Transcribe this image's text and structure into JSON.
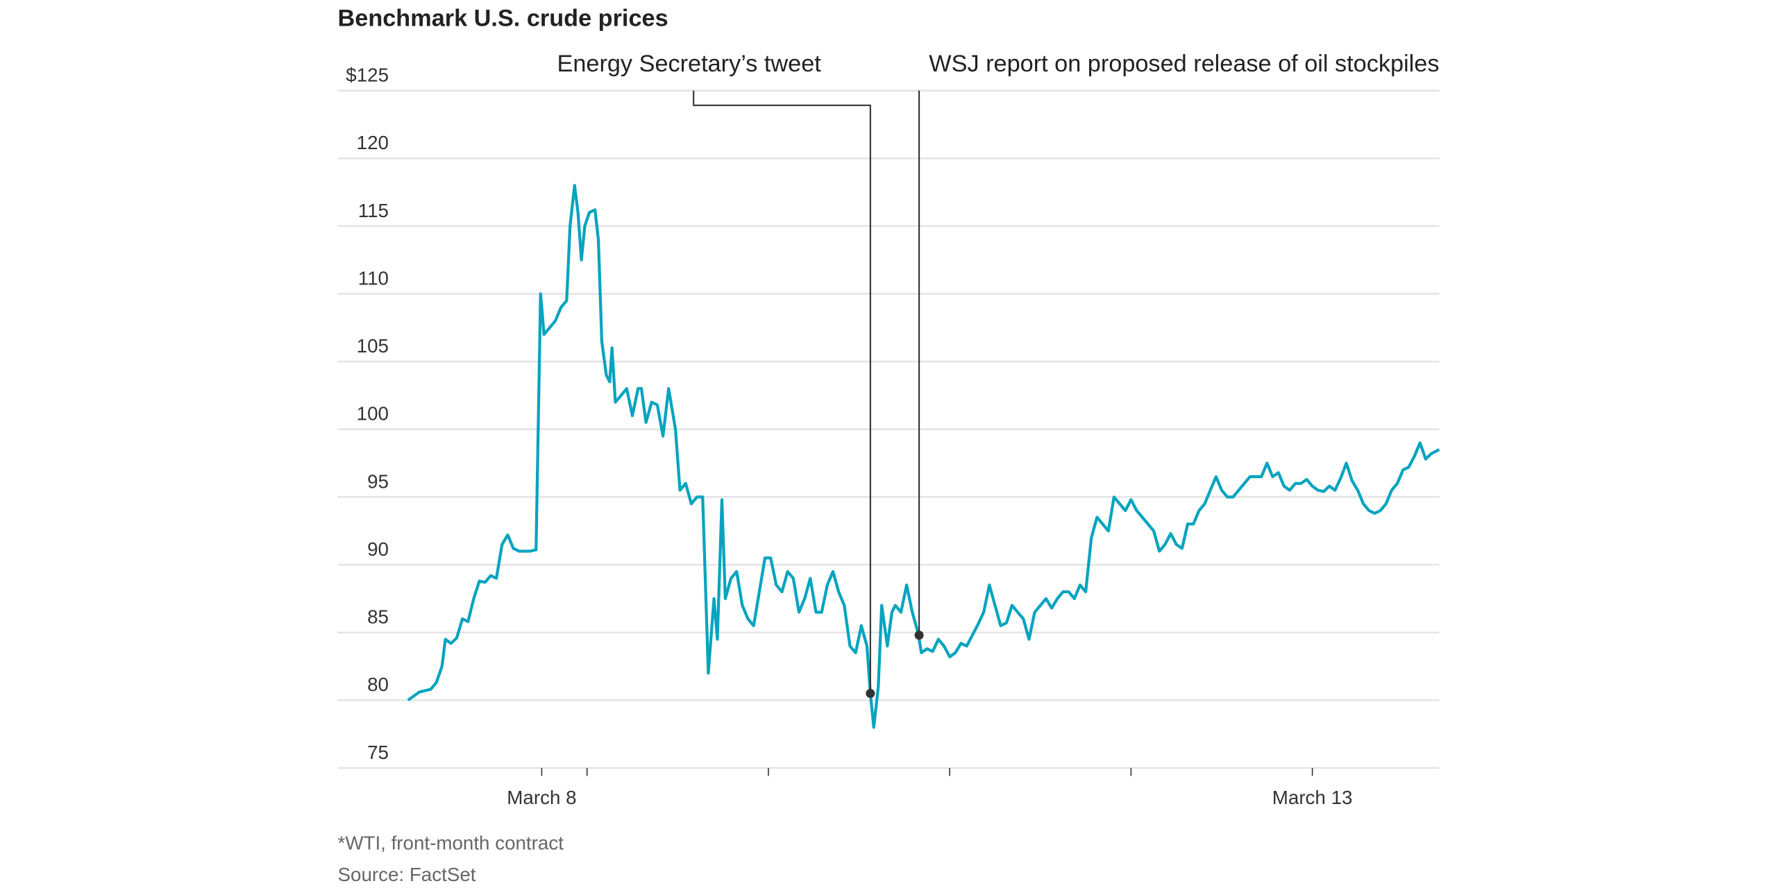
{
  "chart_data": {
    "type": "line",
    "title": "Benchmark U.S. crude prices",
    "footnote": "*WTI, front-month contract",
    "source": "Source: FactSet",
    "ylim": [
      75,
      125
    ],
    "yticks": [
      75,
      80,
      85,
      90,
      95,
      100,
      105,
      110,
      115,
      120,
      125
    ],
    "ytick_labels": [
      "75",
      "80",
      "85",
      "90",
      "95",
      "100",
      "105",
      "110",
      "115",
      "120",
      "$125"
    ],
    "grid": true,
    "line_color": "#06a4bf",
    "xticks": [
      {
        "x": 23.6,
        "label": "March 8"
      },
      {
        "x": 31.6,
        "label": ""
      },
      {
        "x": 63.6,
        "label": ""
      },
      {
        "x": 95.6,
        "label": ""
      },
      {
        "x": 127.6,
        "label": ""
      },
      {
        "x": 159.6,
        "label": "March 13"
      }
    ],
    "x": [
      0,
      1,
      2,
      3,
      4,
      5,
      6,
      6.6,
      7.6,
      8.6,
      9.6,
      10.6,
      11.6,
      12.6,
      13.6,
      14.6,
      15.6,
      16.6,
      17.6,
      18.6,
      19.6,
      20.6,
      21.6,
      22.6,
      23.4,
      24,
      25,
      26,
      27,
      28,
      28.6,
      29.4,
      30,
      30.6,
      31.2,
      32,
      33,
      33.6,
      34.2,
      35,
      35.6,
      36,
      36.6,
      37.6,
      38.6,
      39.6,
      40.6,
      41.2,
      42,
      43,
      44,
      45,
      46,
      46.6,
      47.2,
      48,
      49,
      50,
      51,
      52,
      53,
      54,
      54.6,
      55.4,
      56,
      57,
      58,
      59,
      60,
      61,
      62,
      63,
      64,
      65,
      66,
      67,
      68,
      69,
      70,
      71,
      72,
      73,
      74,
      75,
      76,
      77,
      78,
      79,
      80,
      81,
      81.6,
      82.2,
      83,
      83.6,
      84.6,
      85.4,
      86,
      87,
      88,
      89,
      90,
      90.6,
      91.6,
      92.6,
      93.6,
      94.6,
      95.6,
      96.6,
      97.6,
      98.6,
      99.6,
      100.6,
      101.6,
      102.6,
      103.6,
      104.6,
      105.6,
      106.6,
      107.6,
      108.6,
      109.6,
      110.6,
      111.6,
      112.6,
      113.6,
      114.6,
      115.6,
      116.6,
      117.6,
      118.6,
      119.6,
      120.6,
      121.6,
      122.6,
      123.6,
      124.6,
      125.6,
      126.6,
      127.6,
      128.6,
      129.6,
      130.6,
      131.6,
      132.6,
      133.6,
      134.6,
      135.6,
      136.6,
      137.6,
      138.6,
      139.6,
      140.6,
      141.6,
      142.6,
      143.6,
      144.6,
      145.6,
      146.6,
      147.6,
      148.6,
      149.6,
      150.6,
      151.6,
      152.6,
      153.6,
      154.6,
      155.6,
      156.6,
      157.6,
      158.6,
      159.6,
      160.6,
      161.6,
      162.6,
      163.6,
      164.6,
      165.6,
      166.6,
      167.6,
      168.6,
      169.6,
      170.6,
      171.6,
      172.6,
      173.6,
      174.6,
      175.6,
      176.6,
      177.6,
      178.6,
      179.6,
      180.6,
      182
    ],
    "y": [
      80.0,
      80.3,
      80.6,
      80.7,
      80.8,
      81.3,
      82.5,
      84.5,
      84.2,
      84.6,
      86.0,
      85.8,
      87.5,
      88.8,
      88.7,
      89.2,
      89.0,
      91.5,
      92.2,
      91.2,
      91.0,
      91.0,
      91.0,
      91.1,
      110.0,
      107.0,
      107.5,
      108.0,
      109.0,
      109.5,
      115.0,
      118.0,
      116.0,
      112.5,
      115.0,
      116.0,
      116.2,
      114.0,
      106.5,
      104.0,
      103.5,
      106.0,
      102.0,
      102.5,
      103.0,
      101.0,
      103.0,
      103.0,
      100.5,
      102.0,
      101.8,
      99.5,
      103.0,
      101.5,
      100.0,
      95.5,
      96.0,
      94.5,
      95.0,
      95.0,
      82.0,
      87.5,
      84.5,
      94.8,
      87.5,
      89.0,
      89.5,
      87.0,
      86.0,
      85.5,
      88.0,
      90.5,
      90.5,
      88.5,
      88.0,
      89.5,
      89.0,
      86.5,
      87.5,
      89.0,
      86.5,
      86.5,
      88.5,
      89.5,
      88.0,
      87.0,
      84.0,
      83.5,
      85.5,
      84.0,
      80.5,
      78.0,
      81.0,
      87.0,
      84.0,
      86.5,
      87.0,
      86.5,
      88.5,
      86.5,
      85.0,
      83.5,
      83.8,
      83.6,
      84.5,
      84.0,
      83.2,
      83.5,
      84.2,
      84.0,
      84.8,
      85.6,
      86.5,
      88.5,
      87.0,
      85.5,
      85.7,
      87.0,
      86.5,
      86.0,
      84.5,
      86.5,
      87.0,
      87.5,
      86.8,
      87.5,
      88.0,
      88.0,
      87.5,
      88.5,
      88.0,
      92.0,
      93.5,
      93.0,
      92.5,
      95.0,
      94.5,
      94.0,
      94.8,
      94.0,
      93.5,
      93.0,
      92.5,
      91.0,
      91.5,
      92.3,
      91.5,
      91.2,
      93.0,
      93.0,
      94.0,
      94.5,
      95.5,
      96.5,
      95.5,
      95.0,
      95.0,
      95.5,
      96.0,
      96.5,
      96.5,
      96.5,
      97.5,
      96.5,
      96.8,
      95.8,
      95.5,
      96.0,
      96.0,
      96.3,
      95.8,
      95.5,
      95.4,
      95.8,
      95.5,
      96.4,
      97.5,
      96.2,
      95.5,
      94.5,
      94.0,
      93.8,
      94.0,
      94.5,
      95.5,
      96.0,
      97.0,
      97.2,
      98.0,
      99.0,
      97.8,
      98.2,
      98.5
    ],
    "annotations": [
      {
        "label": "Energy Secretary’s tweet",
        "x": 81.6,
        "y": 80.5
      },
      {
        "label": "WSJ report on proposed release of oil stockpiles",
        "x": 90.2,
        "y": 84.8
      }
    ]
  }
}
